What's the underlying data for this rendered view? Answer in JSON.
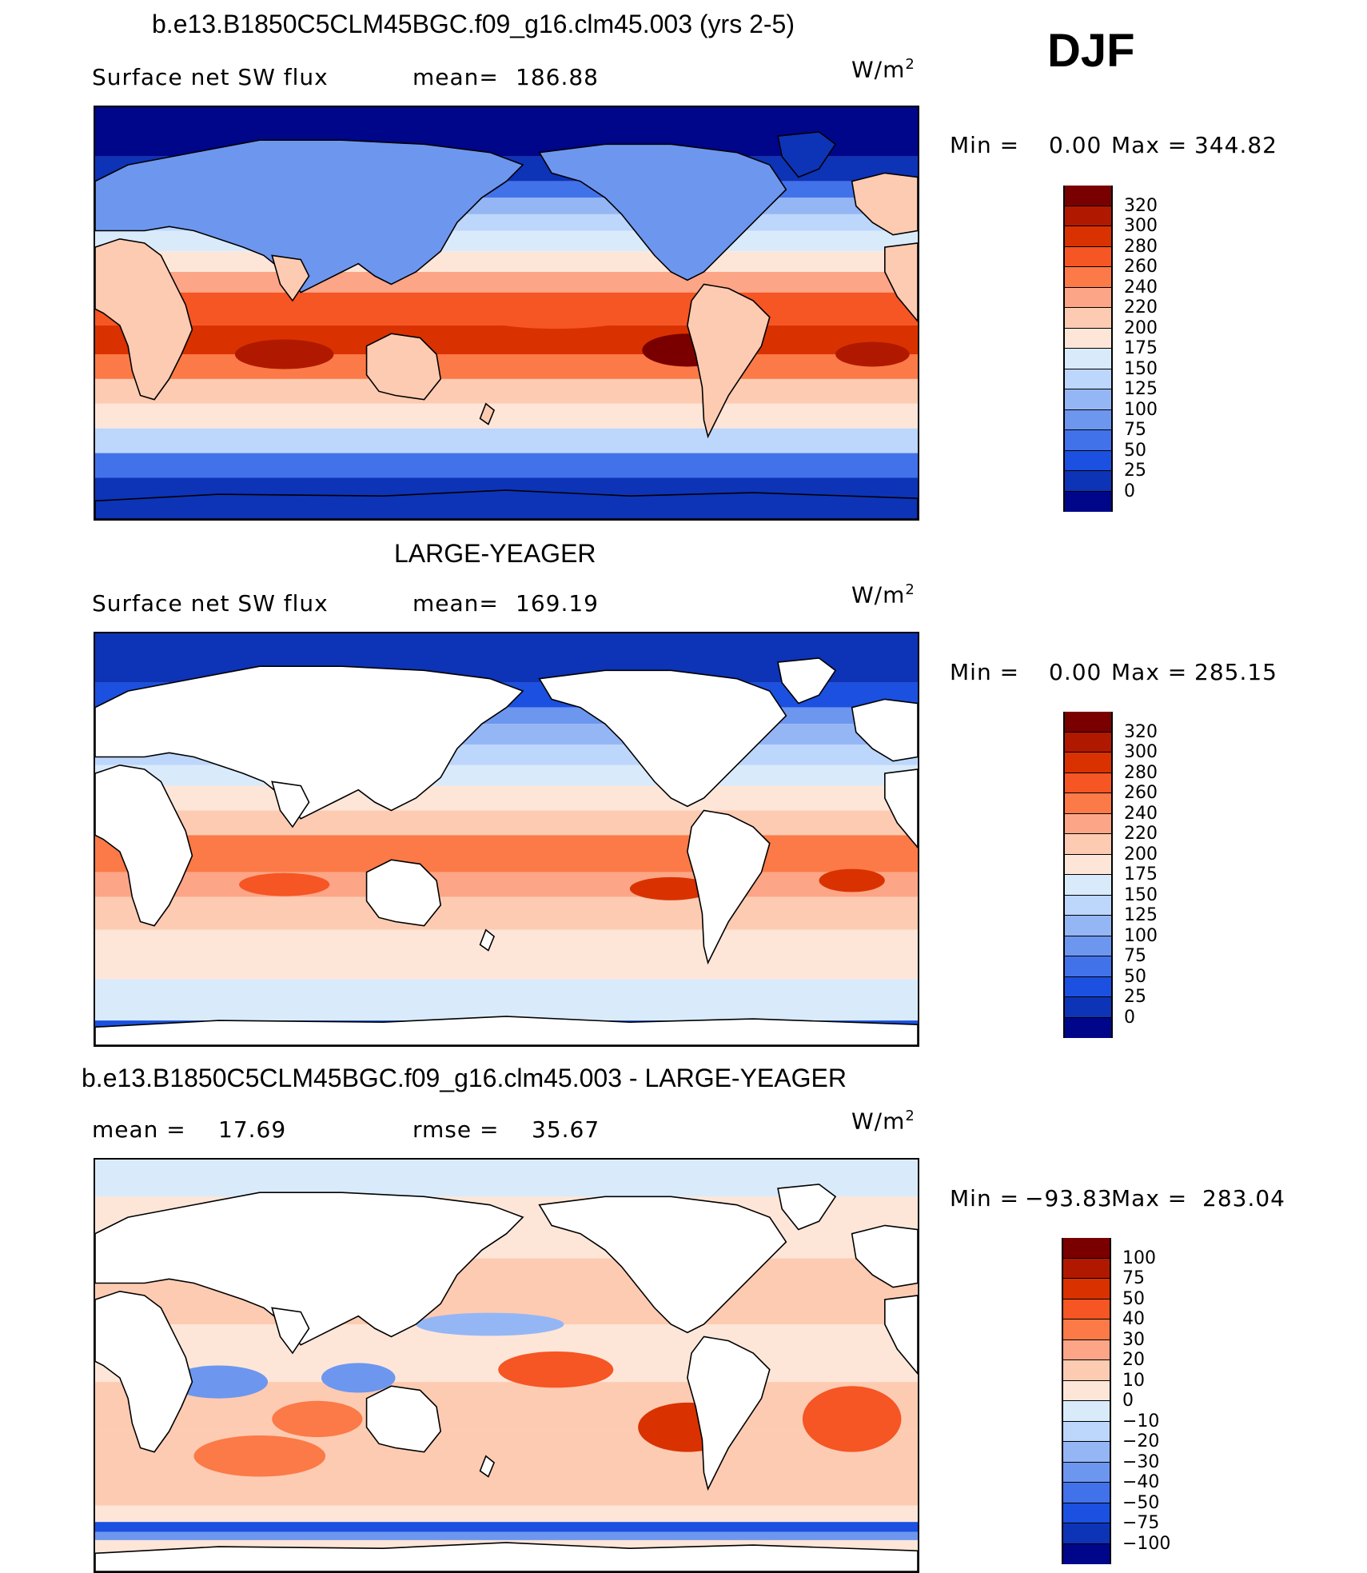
{
  "season": "DJF",
  "panels": [
    {
      "title": "b.e13.B1850C5CLM45BGC.f09_g16.clm45.003 (yrs 2-5)",
      "left_label": "Surface net SW flux",
      "mid_label": "mean=",
      "mid_value": "186.88",
      "units_base": "W/m",
      "units_sup": "2",
      "minmax_min_label": "Min =",
      "min_value": "0.00",
      "minmax_max_label": "Max =",
      "max_value": "344.82",
      "colorbar_levels": [
        "320",
        "300",
        "280",
        "260",
        "240",
        "220",
        "200",
        "175",
        "150",
        "125",
        "100",
        "75",
        "50",
        "25",
        "0"
      ],
      "colorbar_colors": [
        "#7a0000",
        "#b01900",
        "#d93200",
        "#f65524",
        "#fb7a47",
        "#fca587",
        "#fdcbb2",
        "#fde6d8",
        "#d9ebfb",
        "#bdd6fb",
        "#95b6f5",
        "#6d96ef",
        "#4272ea",
        "#1b50e0",
        "#0d33b7",
        "#00068a"
      ],
      "ocean_kind": "ctrl"
    },
    {
      "title": "LARGE-YEAGER",
      "left_label": "Surface net SW flux",
      "mid_label": "mean=",
      "mid_value": "169.19",
      "units_base": "W/m",
      "units_sup": "2",
      "minmax_min_label": "Min =",
      "min_value": "0.00",
      "minmax_max_label": "Max =",
      "max_value": "285.15",
      "colorbar_levels": [
        "320",
        "300",
        "280",
        "260",
        "240",
        "220",
        "200",
        "175",
        "150",
        "125",
        "100",
        "75",
        "50",
        "25",
        "0"
      ],
      "colorbar_colors": [
        "#7a0000",
        "#b01900",
        "#d93200",
        "#f65524",
        "#fb7a47",
        "#fca587",
        "#fdcbb2",
        "#fde6d8",
        "#d9ebfb",
        "#bdd6fb",
        "#95b6f5",
        "#6d96ef",
        "#4272ea",
        "#1b50e0",
        "#0d33b7",
        "#00068a"
      ],
      "ocean_kind": "obs"
    },
    {
      "title": "b.e13.B1850C5CLM45BGC.f09_g16.clm45.003 - LARGE-YEAGER",
      "left_label": "mean =",
      "left_value": "17.69",
      "mid_label": "rmse =",
      "mid_value": "35.67",
      "units_base": "W/m",
      "units_sup": "2",
      "minmax_min_label": "Min =",
      "min_value": "−93.83",
      "minmax_max_label": "Max =",
      "max_value": "283.04",
      "colorbar_levels": [
        "100",
        "75",
        "50",
        "40",
        "30",
        "20",
        "10",
        "0",
        "−10",
        "−20",
        "−30",
        "−40",
        "−50",
        "−75",
        "−100"
      ],
      "colorbar_colors": [
        "#7a0000",
        "#b01900",
        "#d93200",
        "#f65524",
        "#fb7a47",
        "#fca587",
        "#fdcbb2",
        "#fde6d8",
        "#d9ebfb",
        "#bdd6fb",
        "#95b6f5",
        "#6d96ef",
        "#4272ea",
        "#1b50e0",
        "#0d33b7",
        "#00068a"
      ],
      "ocean_kind": "diff"
    }
  ]
}
